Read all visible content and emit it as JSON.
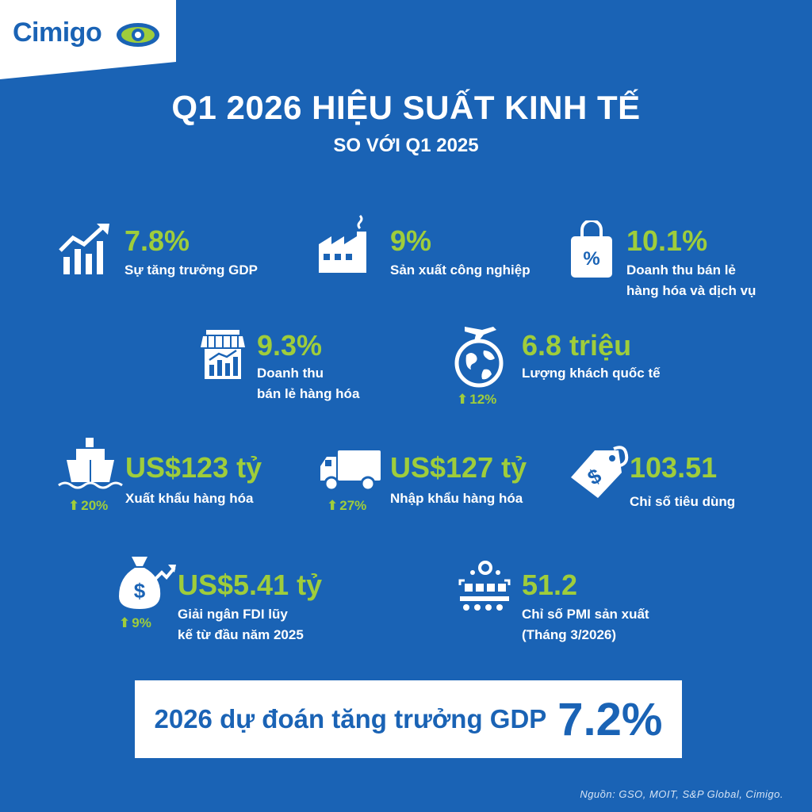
{
  "brand": {
    "name": "Cimigo"
  },
  "header": {
    "title": "Q1 2026 HIỆU SUẤT KINH TẾ",
    "subtitle": "SO VỚI Q1 2025"
  },
  "stats": {
    "gdp": {
      "value": "7.8%",
      "label": "Sự tăng trưởng GDP",
      "icon": "growth-chart-icon"
    },
    "industry": {
      "value": "9%",
      "label": "Sản xuất công nghiệp",
      "icon": "factory-icon"
    },
    "retail_services": {
      "value": "10.1%",
      "label_1": "Doanh thu bán lẻ",
      "label_2": "hàng hóa và dịch vụ",
      "icon": "shopping-bag-icon"
    },
    "retail_goods": {
      "value": "9.3%",
      "label_1": "Doanh thu",
      "label_2": "bán lẻ hàng hóa",
      "icon": "store-icon"
    },
    "visitors": {
      "value": "6.8 triệu",
      "label": "Lượng khách quốc tế",
      "change": "12%",
      "icon": "globe-plane-icon"
    },
    "exports": {
      "value": "US$123 tỷ",
      "label": "Xuất khẩu hàng hóa",
      "change": "20%",
      "icon": "ship-icon"
    },
    "imports": {
      "value": "US$127 tỷ",
      "label": "Nhập khẩu hàng hóa",
      "change": "27%",
      "icon": "truck-icon"
    },
    "cpi": {
      "value": "103.51",
      "label": "Chỉ số tiêu dùng",
      "icon": "price-tag-icon"
    },
    "fdi": {
      "value": "US$5.41 tỷ",
      "label_1": "Giải ngân FDI lũy",
      "label_2": "kế từ đầu năm 2025",
      "change": "9%",
      "icon": "money-bag-icon"
    },
    "pmi": {
      "value": "51.2",
      "label_1": "Chỉ số PMI sản xuất",
      "label_2": "(Tháng 3/2026)",
      "icon": "manufacturing-icon"
    }
  },
  "forecast": {
    "text": "2026 dự đoán tăng trưởng GDP",
    "value": "7.2%"
  },
  "source": "Nguồn: GSO, MOIT, S&P Global, Cimigo.",
  "colors": {
    "background": "#1a63b5",
    "accent": "#9fcd3b",
    "text": "#ffffff"
  }
}
